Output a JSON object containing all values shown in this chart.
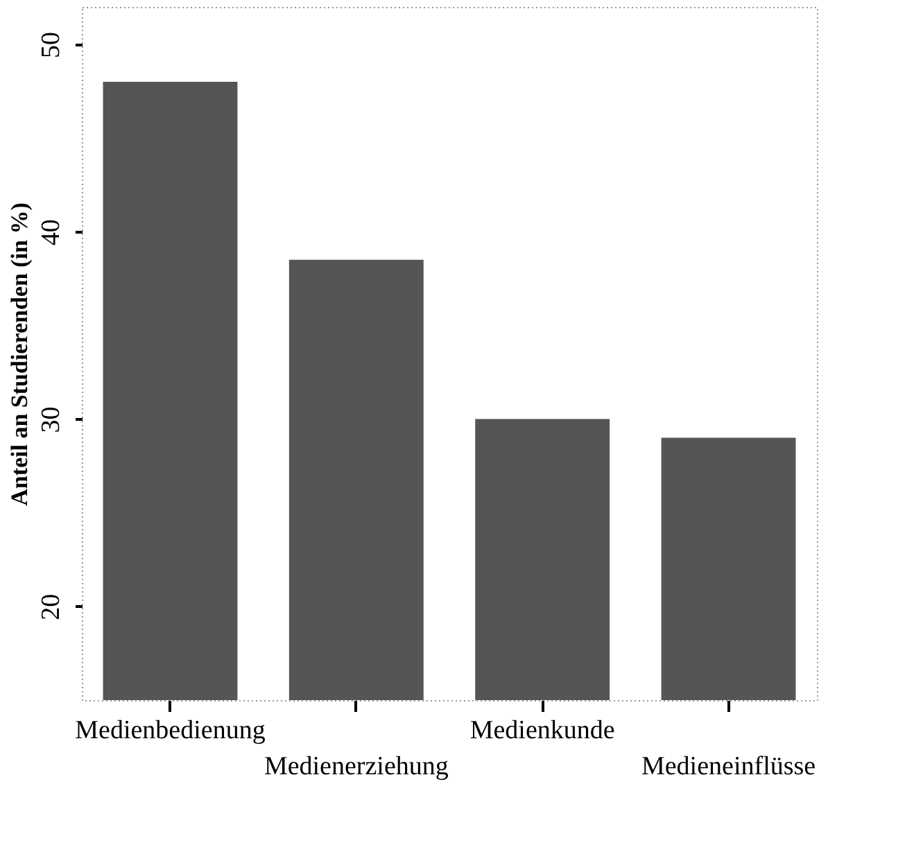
{
  "chart_data": {
    "type": "bar",
    "ylabel": "Anteil an Studierenden (in %)",
    "categories": [
      "Medienbedienung",
      "Medienerziehung",
      "Medienkunde",
      "Medieneinflüsse"
    ],
    "values": [
      48,
      38.5,
      30,
      29
    ],
    "color": "#555555",
    "ylim": [
      15,
      52
    ],
    "yticks": [
      20,
      30,
      40,
      50
    ],
    "grid": false
  }
}
